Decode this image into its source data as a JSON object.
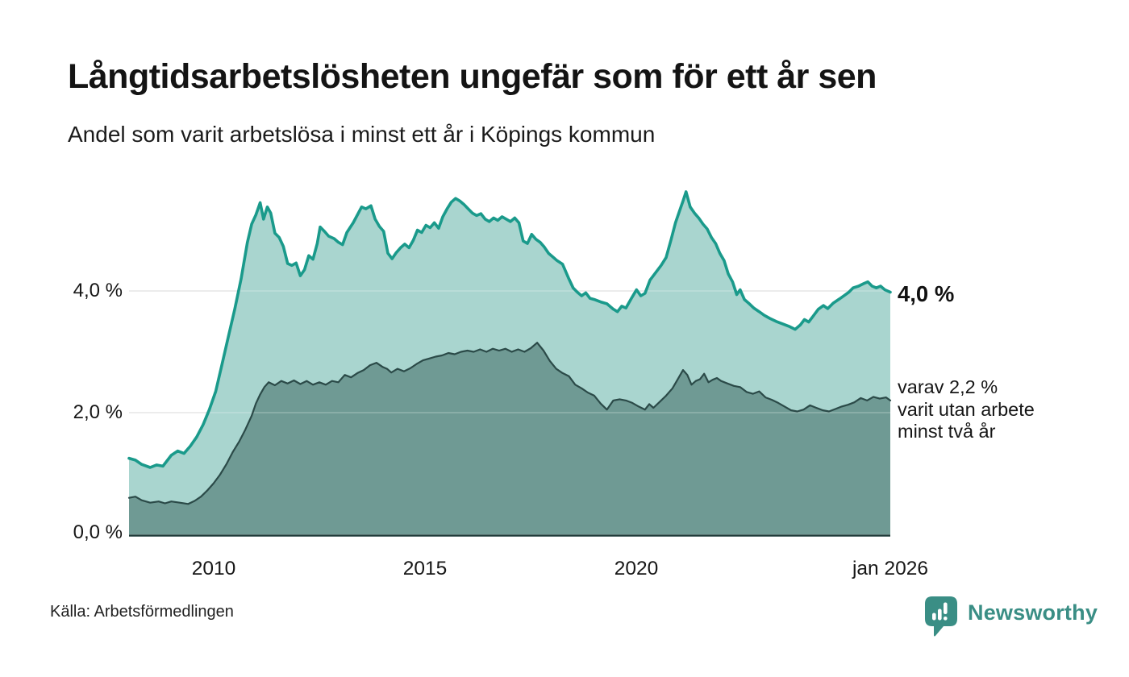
{
  "header": {
    "title": "Långtidsarbetslösheten ungefär som för ett år sen",
    "subtitle": "Andel som varit arbetslösa i minst ett år i Köpings kommun"
  },
  "colors": {
    "brand": "#3a8e85",
    "grid": "#e0e0e0",
    "axis": "#1d3a38",
    "series1_line": "#1a9a8b",
    "series1_fill": "#a5d3cd",
    "series2_line": "#2b4a48",
    "series2_fill": "#6f9a94"
  },
  "annotations": {
    "latest_total": "4,0 %",
    "detail_lines": [
      "varav 2,2 %",
      "varit utan arbete",
      "minst två år"
    ]
  },
  "footer": {
    "source": "Källa: Arbetsförmedlingen",
    "brand": "Newsworthy"
  },
  "chart_data": {
    "type": "area",
    "title": "Långtidsarbetslösheten ungefär som för ett år sen",
    "subtitle": "Andel som varit arbetslösa i minst ett år i Köpings kommun",
    "unit": "%",
    "grid": true,
    "x_range": [
      2008,
      2026
    ],
    "y_range": [
      0,
      5.8
    ],
    "y_ticks": [
      {
        "value": 0,
        "label": "0,0 %"
      },
      {
        "value": 2,
        "label": "2,0 %"
      },
      {
        "value": 4,
        "label": "4,0 %"
      }
    ],
    "x_ticks": [
      {
        "value": 2010,
        "label": "2010"
      },
      {
        "value": 2015,
        "label": "2015"
      },
      {
        "value": 2020,
        "label": "2020"
      },
      {
        "value": 2026,
        "label": "jan 2026"
      }
    ],
    "series": [
      {
        "name": "Arbetslösa minst ett år",
        "line_color": "#1a9a8b",
        "fill_color": "#a5d3cd",
        "latest_value": 4.0,
        "points": [
          [
            2008.0,
            1.25
          ],
          [
            2008.15,
            1.22
          ],
          [
            2008.3,
            1.15
          ],
          [
            2008.5,
            1.1
          ],
          [
            2008.65,
            1.14
          ],
          [
            2008.8,
            1.12
          ],
          [
            2009.0,
            1.3
          ],
          [
            2009.15,
            1.37
          ],
          [
            2009.3,
            1.33
          ],
          [
            2009.45,
            1.45
          ],
          [
            2009.6,
            1.6
          ],
          [
            2009.75,
            1.8
          ],
          [
            2009.9,
            2.05
          ],
          [
            2010.05,
            2.35
          ],
          [
            2010.2,
            2.8
          ],
          [
            2010.35,
            3.25
          ],
          [
            2010.5,
            3.7
          ],
          [
            2010.65,
            4.2
          ],
          [
            2010.8,
            4.8
          ],
          [
            2010.9,
            5.1
          ],
          [
            2011.0,
            5.25
          ],
          [
            2011.1,
            5.45
          ],
          [
            2011.18,
            5.18
          ],
          [
            2011.27,
            5.38
          ],
          [
            2011.35,
            5.28
          ],
          [
            2011.45,
            4.95
          ],
          [
            2011.55,
            4.88
          ],
          [
            2011.65,
            4.73
          ],
          [
            2011.75,
            4.45
          ],
          [
            2011.85,
            4.42
          ],
          [
            2011.95,
            4.46
          ],
          [
            2012.05,
            4.25
          ],
          [
            2012.15,
            4.35
          ],
          [
            2012.25,
            4.58
          ],
          [
            2012.35,
            4.52
          ],
          [
            2012.45,
            4.78
          ],
          [
            2012.52,
            5.05
          ],
          [
            2012.62,
            4.98
          ],
          [
            2012.72,
            4.9
          ],
          [
            2012.85,
            4.86
          ],
          [
            2012.95,
            4.8
          ],
          [
            2013.05,
            4.76
          ],
          [
            2013.15,
            4.96
          ],
          [
            2013.3,
            5.12
          ],
          [
            2013.4,
            5.25
          ],
          [
            2013.5,
            5.38
          ],
          [
            2013.6,
            5.35
          ],
          [
            2013.72,
            5.4
          ],
          [
            2013.82,
            5.18
          ],
          [
            2013.92,
            5.06
          ],
          [
            2014.02,
            4.98
          ],
          [
            2014.12,
            4.62
          ],
          [
            2014.22,
            4.53
          ],
          [
            2014.32,
            4.63
          ],
          [
            2014.42,
            4.71
          ],
          [
            2014.52,
            4.77
          ],
          [
            2014.62,
            4.71
          ],
          [
            2014.72,
            4.83
          ],
          [
            2014.82,
            5.0
          ],
          [
            2014.92,
            4.96
          ],
          [
            2015.02,
            5.08
          ],
          [
            2015.12,
            5.04
          ],
          [
            2015.22,
            5.12
          ],
          [
            2015.32,
            5.03
          ],
          [
            2015.42,
            5.22
          ],
          [
            2015.52,
            5.35
          ],
          [
            2015.62,
            5.46
          ],
          [
            2015.72,
            5.52
          ],
          [
            2015.82,
            5.48
          ],
          [
            2015.92,
            5.42
          ],
          [
            2016.02,
            5.35
          ],
          [
            2016.12,
            5.28
          ],
          [
            2016.22,
            5.24
          ],
          [
            2016.32,
            5.27
          ],
          [
            2016.42,
            5.18
          ],
          [
            2016.52,
            5.14
          ],
          [
            2016.62,
            5.2
          ],
          [
            2016.72,
            5.16
          ],
          [
            2016.82,
            5.22
          ],
          [
            2016.92,
            5.18
          ],
          [
            2017.02,
            5.14
          ],
          [
            2017.12,
            5.2
          ],
          [
            2017.22,
            5.12
          ],
          [
            2017.32,
            4.82
          ],
          [
            2017.42,
            4.78
          ],
          [
            2017.52,
            4.93
          ],
          [
            2017.62,
            4.85
          ],
          [
            2017.72,
            4.8
          ],
          [
            2017.82,
            4.72
          ],
          [
            2017.92,
            4.62
          ],
          [
            2018.02,
            4.56
          ],
          [
            2018.12,
            4.5
          ],
          [
            2018.25,
            4.44
          ],
          [
            2018.4,
            4.2
          ],
          [
            2018.5,
            4.05
          ],
          [
            2018.6,
            3.98
          ],
          [
            2018.7,
            3.92
          ],
          [
            2018.8,
            3.97
          ],
          [
            2018.9,
            3.88
          ],
          [
            2019.0,
            3.86
          ],
          [
            2019.15,
            3.82
          ],
          [
            2019.3,
            3.79
          ],
          [
            2019.45,
            3.7
          ],
          [
            2019.55,
            3.66
          ],
          [
            2019.65,
            3.75
          ],
          [
            2019.75,
            3.72
          ],
          [
            2019.88,
            3.88
          ],
          [
            2020.0,
            4.02
          ],
          [
            2020.1,
            3.92
          ],
          [
            2020.2,
            3.96
          ],
          [
            2020.32,
            4.18
          ],
          [
            2020.45,
            4.3
          ],
          [
            2020.58,
            4.42
          ],
          [
            2020.7,
            4.55
          ],
          [
            2020.82,
            4.85
          ],
          [
            2020.92,
            5.12
          ],
          [
            2021.02,
            5.32
          ],
          [
            2021.1,
            5.48
          ],
          [
            2021.17,
            5.63
          ],
          [
            2021.27,
            5.38
          ],
          [
            2021.37,
            5.28
          ],
          [
            2021.47,
            5.2
          ],
          [
            2021.57,
            5.1
          ],
          [
            2021.67,
            5.02
          ],
          [
            2021.77,
            4.88
          ],
          [
            2021.87,
            4.78
          ],
          [
            2021.97,
            4.62
          ],
          [
            2022.07,
            4.5
          ],
          [
            2022.17,
            4.28
          ],
          [
            2022.27,
            4.15
          ],
          [
            2022.37,
            3.94
          ],
          [
            2022.45,
            4.02
          ],
          [
            2022.55,
            3.86
          ],
          [
            2022.65,
            3.8
          ],
          [
            2022.77,
            3.72
          ],
          [
            2022.9,
            3.66
          ],
          [
            2023.02,
            3.6
          ],
          [
            2023.15,
            3.55
          ],
          [
            2023.3,
            3.5
          ],
          [
            2023.45,
            3.46
          ],
          [
            2023.6,
            3.42
          ],
          [
            2023.75,
            3.37
          ],
          [
            2023.87,
            3.44
          ],
          [
            2023.97,
            3.53
          ],
          [
            2024.07,
            3.49
          ],
          [
            2024.17,
            3.58
          ],
          [
            2024.3,
            3.7
          ],
          [
            2024.42,
            3.76
          ],
          [
            2024.52,
            3.71
          ],
          [
            2024.65,
            3.8
          ],
          [
            2024.8,
            3.87
          ],
          [
            2024.92,
            3.93
          ],
          [
            2025.02,
            3.98
          ],
          [
            2025.12,
            4.05
          ],
          [
            2025.25,
            4.08
          ],
          [
            2025.37,
            4.12
          ],
          [
            2025.47,
            4.15
          ],
          [
            2025.57,
            4.08
          ],
          [
            2025.67,
            4.05
          ],
          [
            2025.77,
            4.08
          ],
          [
            2025.87,
            4.02
          ],
          [
            2026.0,
            3.98
          ]
        ]
      },
      {
        "name": "Arbetslösa minst två år",
        "line_color": "#2b4a48",
        "fill_color": "#6f9a94",
        "latest_value": 2.2,
        "points": [
          [
            2008.0,
            0.6
          ],
          [
            2008.15,
            0.62
          ],
          [
            2008.3,
            0.56
          ],
          [
            2008.5,
            0.52
          ],
          [
            2008.7,
            0.54
          ],
          [
            2008.85,
            0.51
          ],
          [
            2009.0,
            0.54
          ],
          [
            2009.2,
            0.52
          ],
          [
            2009.4,
            0.5
          ],
          [
            2009.55,
            0.55
          ],
          [
            2009.7,
            0.62
          ],
          [
            2009.85,
            0.72
          ],
          [
            2010.0,
            0.84
          ],
          [
            2010.15,
            0.98
          ],
          [
            2010.3,
            1.15
          ],
          [
            2010.45,
            1.35
          ],
          [
            2010.6,
            1.52
          ],
          [
            2010.75,
            1.72
          ],
          [
            2010.9,
            1.95
          ],
          [
            2011.0,
            2.15
          ],
          [
            2011.1,
            2.3
          ],
          [
            2011.2,
            2.42
          ],
          [
            2011.3,
            2.5
          ],
          [
            2011.45,
            2.45
          ],
          [
            2011.6,
            2.52
          ],
          [
            2011.75,
            2.48
          ],
          [
            2011.9,
            2.53
          ],
          [
            2012.05,
            2.47
          ],
          [
            2012.2,
            2.52
          ],
          [
            2012.35,
            2.46
          ],
          [
            2012.5,
            2.5
          ],
          [
            2012.65,
            2.46
          ],
          [
            2012.8,
            2.52
          ],
          [
            2012.95,
            2.5
          ],
          [
            2013.1,
            2.62
          ],
          [
            2013.25,
            2.58
          ],
          [
            2013.4,
            2.65
          ],
          [
            2013.55,
            2.7
          ],
          [
            2013.7,
            2.78
          ],
          [
            2013.85,
            2.82
          ],
          [
            2014.0,
            2.75
          ],
          [
            2014.1,
            2.72
          ],
          [
            2014.2,
            2.66
          ],
          [
            2014.35,
            2.72
          ],
          [
            2014.5,
            2.68
          ],
          [
            2014.65,
            2.73
          ],
          [
            2014.8,
            2.8
          ],
          [
            2014.95,
            2.86
          ],
          [
            2015.1,
            2.89
          ],
          [
            2015.25,
            2.92
          ],
          [
            2015.4,
            2.94
          ],
          [
            2015.55,
            2.98
          ],
          [
            2015.7,
            2.96
          ],
          [
            2015.85,
            3.0
          ],
          [
            2016.0,
            3.02
          ],
          [
            2016.15,
            3.0
          ],
          [
            2016.3,
            3.04
          ],
          [
            2016.45,
            3.0
          ],
          [
            2016.6,
            3.05
          ],
          [
            2016.75,
            3.02
          ],
          [
            2016.9,
            3.05
          ],
          [
            2017.05,
            3.0
          ],
          [
            2017.2,
            3.04
          ],
          [
            2017.35,
            3.0
          ],
          [
            2017.5,
            3.06
          ],
          [
            2017.65,
            3.15
          ],
          [
            2017.8,
            3.02
          ],
          [
            2017.95,
            2.85
          ],
          [
            2018.1,
            2.72
          ],
          [
            2018.25,
            2.65
          ],
          [
            2018.4,
            2.6
          ],
          [
            2018.55,
            2.46
          ],
          [
            2018.7,
            2.4
          ],
          [
            2018.85,
            2.33
          ],
          [
            2019.0,
            2.28
          ],
          [
            2019.15,
            2.15
          ],
          [
            2019.3,
            2.05
          ],
          [
            2019.45,
            2.2
          ],
          [
            2019.6,
            2.22
          ],
          [
            2019.75,
            2.2
          ],
          [
            2019.9,
            2.16
          ],
          [
            2020.05,
            2.1
          ],
          [
            2020.2,
            2.05
          ],
          [
            2020.3,
            2.14
          ],
          [
            2020.4,
            2.08
          ],
          [
            2020.55,
            2.18
          ],
          [
            2020.7,
            2.28
          ],
          [
            2020.85,
            2.4
          ],
          [
            2021.0,
            2.58
          ],
          [
            2021.1,
            2.7
          ],
          [
            2021.2,
            2.62
          ],
          [
            2021.3,
            2.46
          ],
          [
            2021.4,
            2.52
          ],
          [
            2021.5,
            2.55
          ],
          [
            2021.6,
            2.64
          ],
          [
            2021.7,
            2.5
          ],
          [
            2021.8,
            2.54
          ],
          [
            2021.9,
            2.57
          ],
          [
            2022.0,
            2.52
          ],
          [
            2022.15,
            2.48
          ],
          [
            2022.3,
            2.44
          ],
          [
            2022.45,
            2.42
          ],
          [
            2022.6,
            2.34
          ],
          [
            2022.75,
            2.31
          ],
          [
            2022.9,
            2.35
          ],
          [
            2023.05,
            2.25
          ],
          [
            2023.2,
            2.21
          ],
          [
            2023.35,
            2.16
          ],
          [
            2023.5,
            2.1
          ],
          [
            2023.65,
            2.04
          ],
          [
            2023.8,
            2.02
          ],
          [
            2023.95,
            2.05
          ],
          [
            2024.1,
            2.12
          ],
          [
            2024.25,
            2.08
          ],
          [
            2024.4,
            2.04
          ],
          [
            2024.55,
            2.02
          ],
          [
            2024.7,
            2.06
          ],
          [
            2024.85,
            2.1
          ],
          [
            2025.0,
            2.13
          ],
          [
            2025.15,
            2.17
          ],
          [
            2025.3,
            2.24
          ],
          [
            2025.45,
            2.2
          ],
          [
            2025.6,
            2.26
          ],
          [
            2025.75,
            2.23
          ],
          [
            2025.9,
            2.25
          ],
          [
            2026.0,
            2.2
          ]
        ]
      }
    ]
  }
}
